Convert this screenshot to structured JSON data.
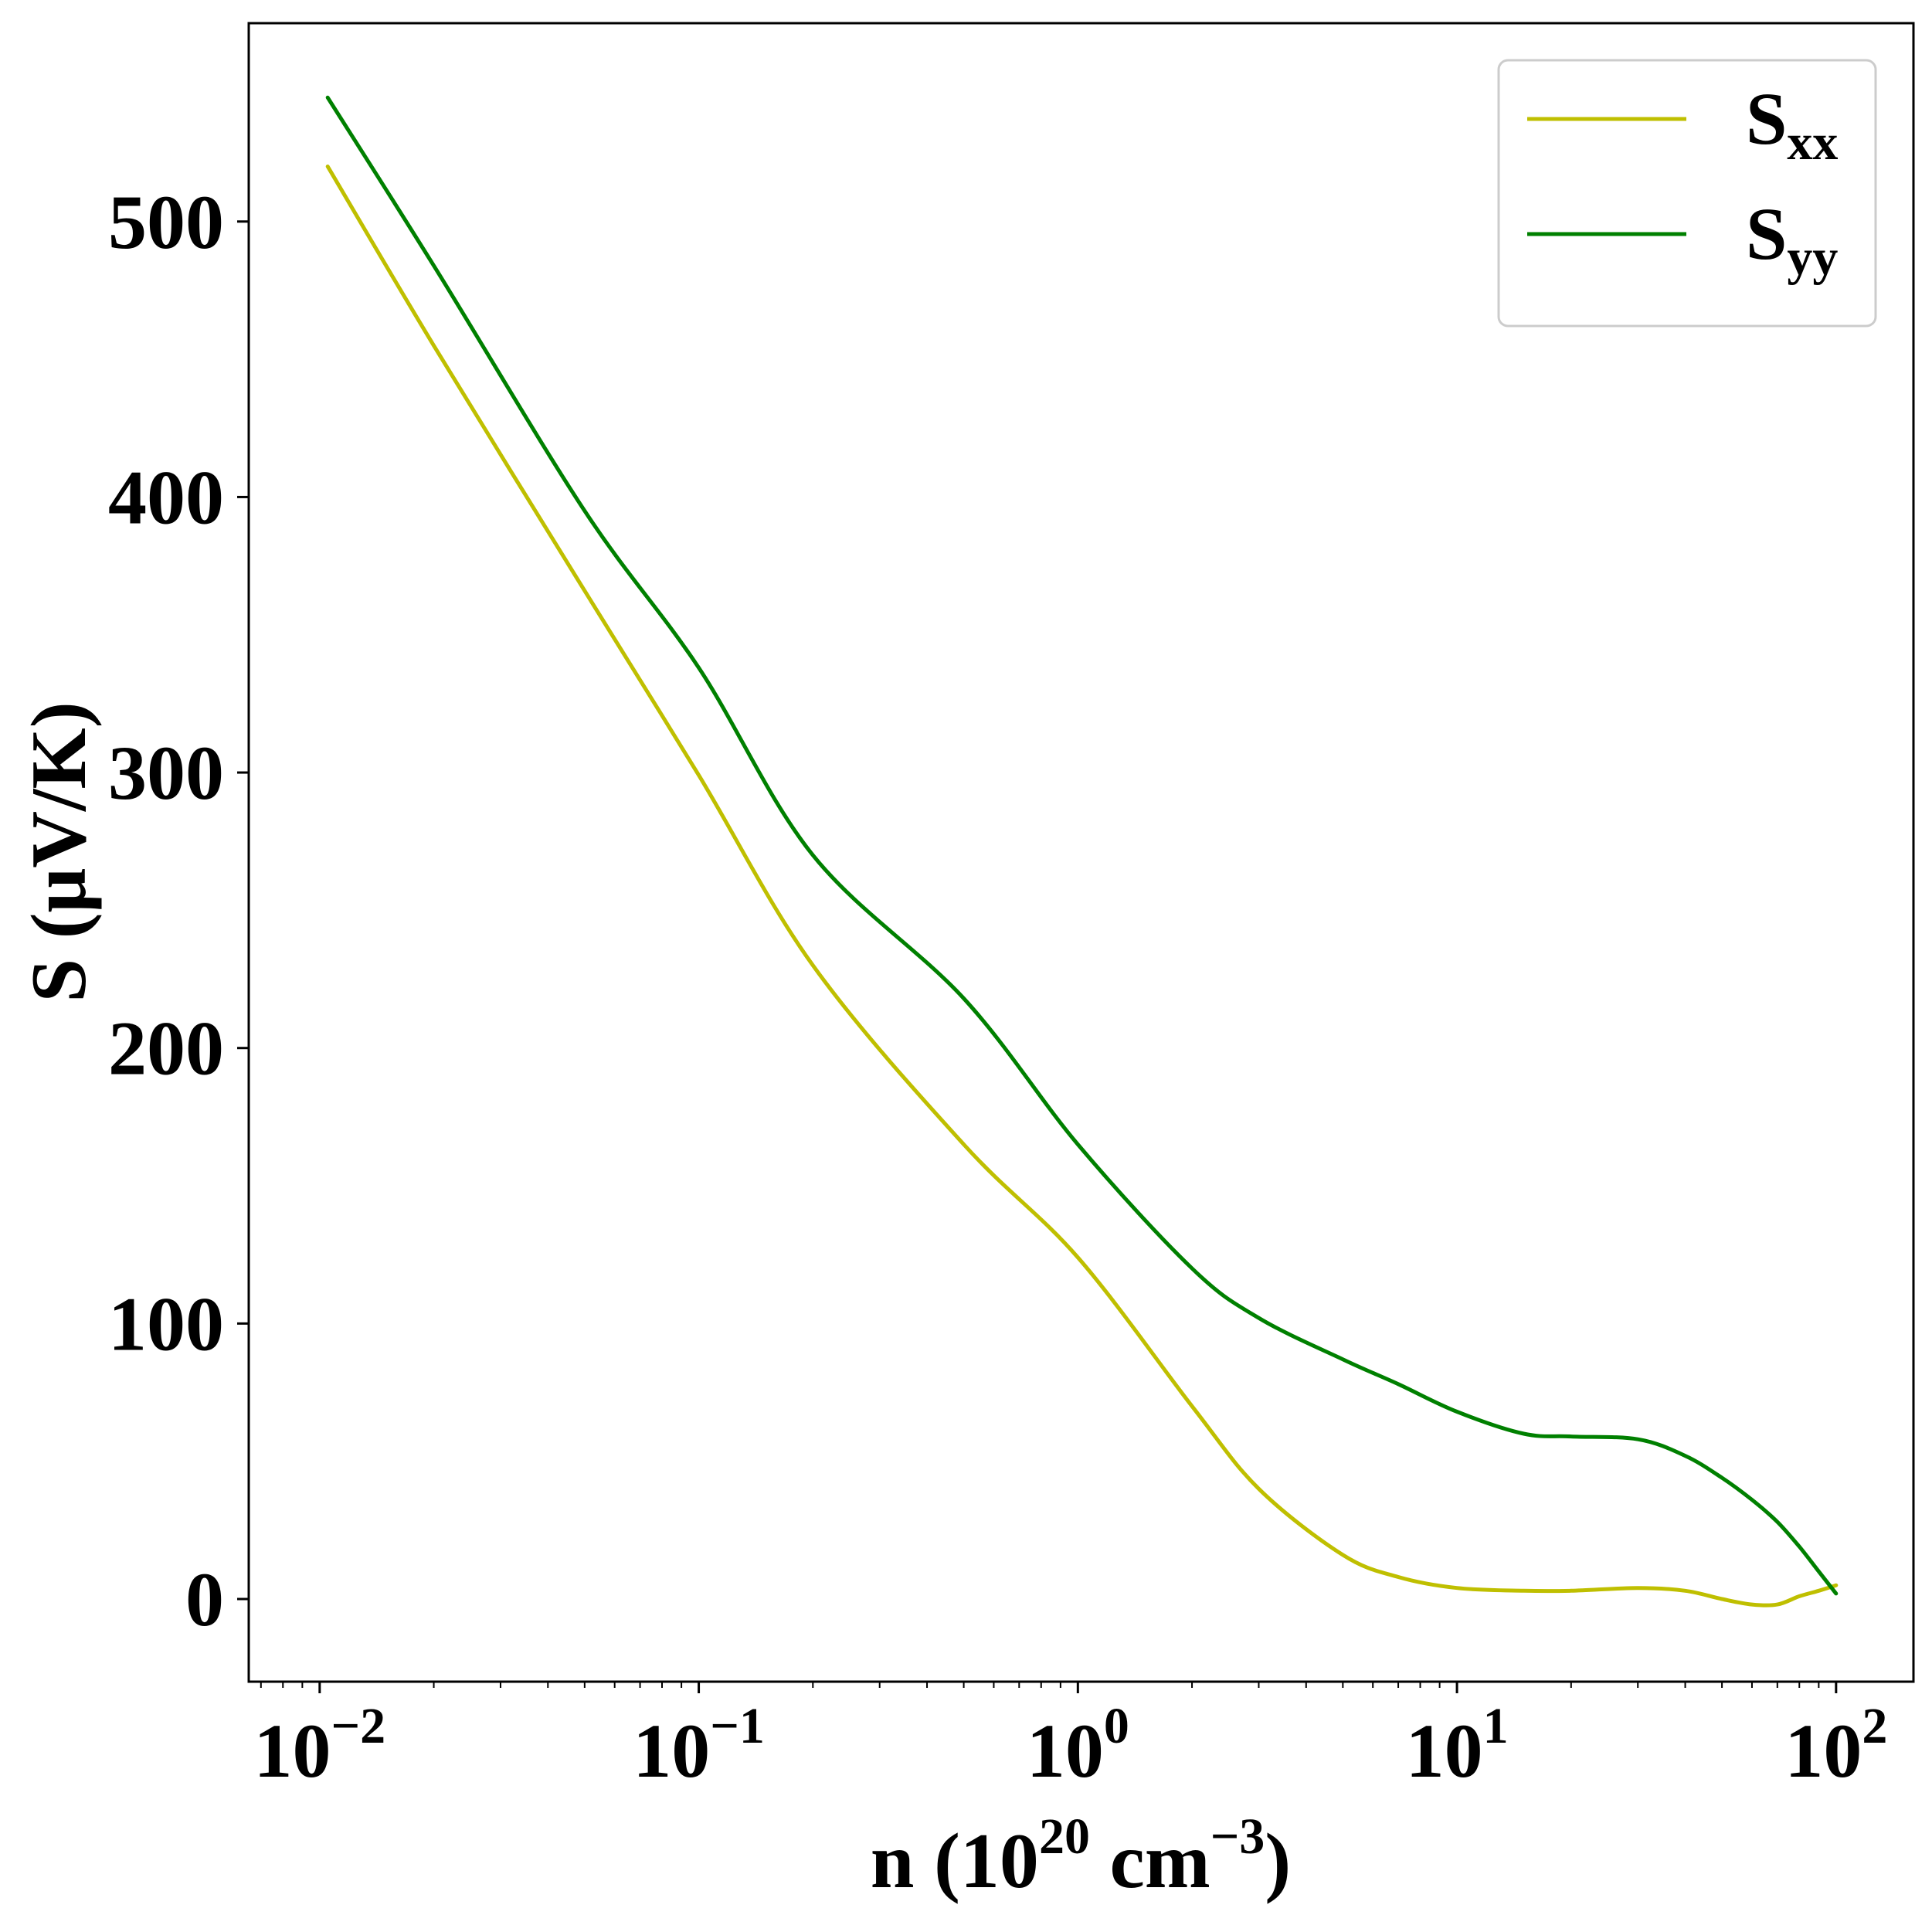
{
  "chart_data": {
    "type": "line",
    "xscale": "log",
    "xlabel": {
      "base": "n (10",
      "exp1": "20",
      "mid": " cm",
      "exp2": "−3",
      "end": ")"
    },
    "ylabel": "S (μV/K)",
    "xlim": [
      0.0065,
      160
    ],
    "ylim": [
      -30,
      572
    ],
    "x_ticks": [
      {
        "value": 0.01,
        "base": "10",
        "exp": "−2"
      },
      {
        "value": 0.1,
        "base": "10",
        "exp": "−1"
      },
      {
        "value": 1,
        "base": "10",
        "exp": "0"
      },
      {
        "value": 10,
        "base": "10",
        "exp": "1"
      },
      {
        "value": 100,
        "base": "10",
        "exp": "2"
      }
    ],
    "y_ticks": [
      0,
      100,
      200,
      300,
      400,
      500
    ],
    "grid": false,
    "legend_position": "top-right",
    "series": [
      {
        "name": {
          "main": "S",
          "sub": "xx"
        },
        "color": "#bfbf00",
        "x": [
          0.0105,
          0.02,
          0.05,
          0.1,
          0.2,
          0.5,
          1,
          2,
          3,
          5,
          7,
          10,
          15,
          20,
          30,
          40,
          50,
          60,
          70,
          80,
          90,
          100
        ],
        "y": [
          520,
          455,
          366,
          299,
          230,
          165,
          124,
          70,
          40,
          16,
          8,
          4,
          3,
          3,
          4,
          3,
          0,
          -2,
          -2,
          1,
          3,
          5
        ]
      },
      {
        "name": {
          "main": "S",
          "sub": "yy"
        },
        "color": "#008000",
        "x": [
          0.0105,
          0.02,
          0.05,
          0.1,
          0.2,
          0.5,
          1,
          2,
          3,
          5,
          7,
          10,
          15,
          20,
          30,
          40,
          50,
          60,
          70,
          80,
          90,
          100
        ],
        "y": [
          545,
          484,
          395,
          338,
          270,
          218,
          165,
          120,
          102,
          87,
          78,
          68,
          60,
          59,
          58,
          52,
          44,
          36,
          28,
          19,
          10,
          2
        ]
      }
    ]
  }
}
